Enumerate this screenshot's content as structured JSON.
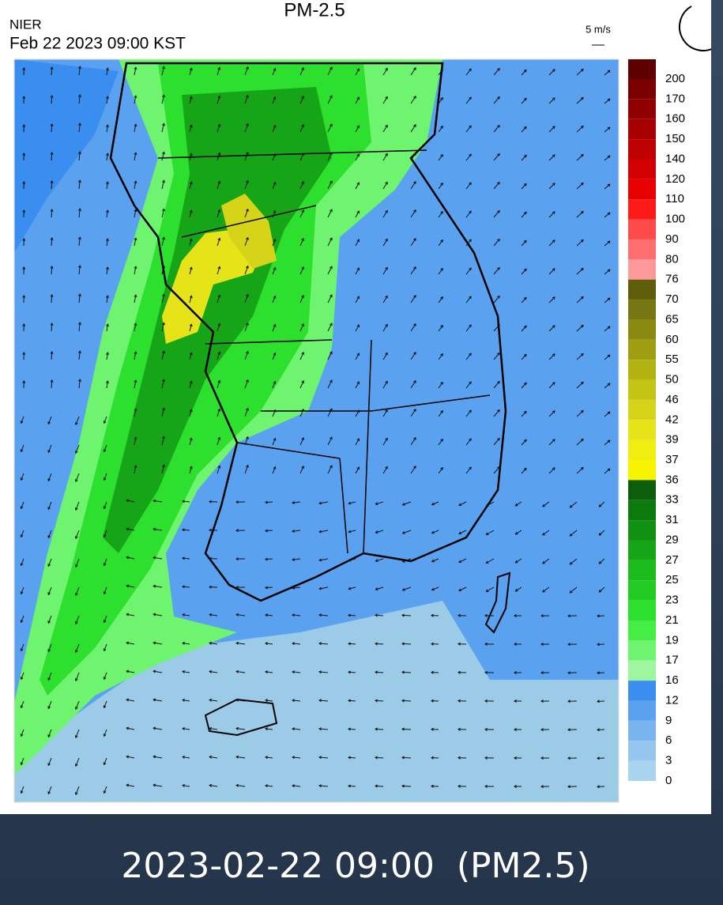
{
  "header": {
    "agency": "NIER",
    "timestamp": "Feb 22 2023 09:00 KST",
    "title": "PM-2.5",
    "wind_scale": "5 m/s"
  },
  "legend": [
    {
      "label": "200",
      "color": "#5c0000"
    },
    {
      "label": "170",
      "color": "#7a0000"
    },
    {
      "label": "160",
      "color": "#900000"
    },
    {
      "label": "150",
      "color": "#a80000"
    },
    {
      "label": "140",
      "color": "#be0000"
    },
    {
      "label": "120",
      "color": "#d20000"
    },
    {
      "label": "110",
      "color": "#e80000"
    },
    {
      "label": "100",
      "color": "#ff1a1a"
    },
    {
      "label": "90",
      "color": "#ff4a4a"
    },
    {
      "label": "80",
      "color": "#ff6e6e"
    },
    {
      "label": "76",
      "color": "#ff9a9a"
    },
    {
      "label": "70",
      "color": "#5e5e0a"
    },
    {
      "label": "65",
      "color": "#767612"
    },
    {
      "label": "60",
      "color": "#8a8a10"
    },
    {
      "label": "55",
      "color": "#9e9e10"
    },
    {
      "label": "50",
      "color": "#b2b210"
    },
    {
      "label": "46",
      "color": "#c4c414"
    },
    {
      "label": "42",
      "color": "#d6d418"
    },
    {
      "label": "39",
      "color": "#e6e418"
    },
    {
      "label": "37",
      "color": "#f0ee10"
    },
    {
      "label": "36",
      "color": "#f8f400"
    },
    {
      "label": "33",
      "color": "#0b5e0b"
    },
    {
      "label": "31",
      "color": "#0d7a0d"
    },
    {
      "label": "29",
      "color": "#119011"
    },
    {
      "label": "27",
      "color": "#16a516"
    },
    {
      "label": "25",
      "color": "#1cbc1c"
    },
    {
      "label": "23",
      "color": "#22cc22"
    },
    {
      "label": "21",
      "color": "#2ee02e"
    },
    {
      "label": "19",
      "color": "#44ee44"
    },
    {
      "label": "17",
      "color": "#6ef46e"
    },
    {
      "label": "16",
      "color": "#9ef79e"
    },
    {
      "label": "12",
      "color": "#3a8ef0"
    },
    {
      "label": "9",
      "color": "#5aa2f0"
    },
    {
      "label": "6",
      "color": "#78b4ee"
    },
    {
      "label": "3",
      "color": "#94c6ee"
    },
    {
      "label": "0",
      "color": "#a8d4f0"
    }
  ],
  "caption": "2023-02-22 09:00  (PM2.5)"
}
